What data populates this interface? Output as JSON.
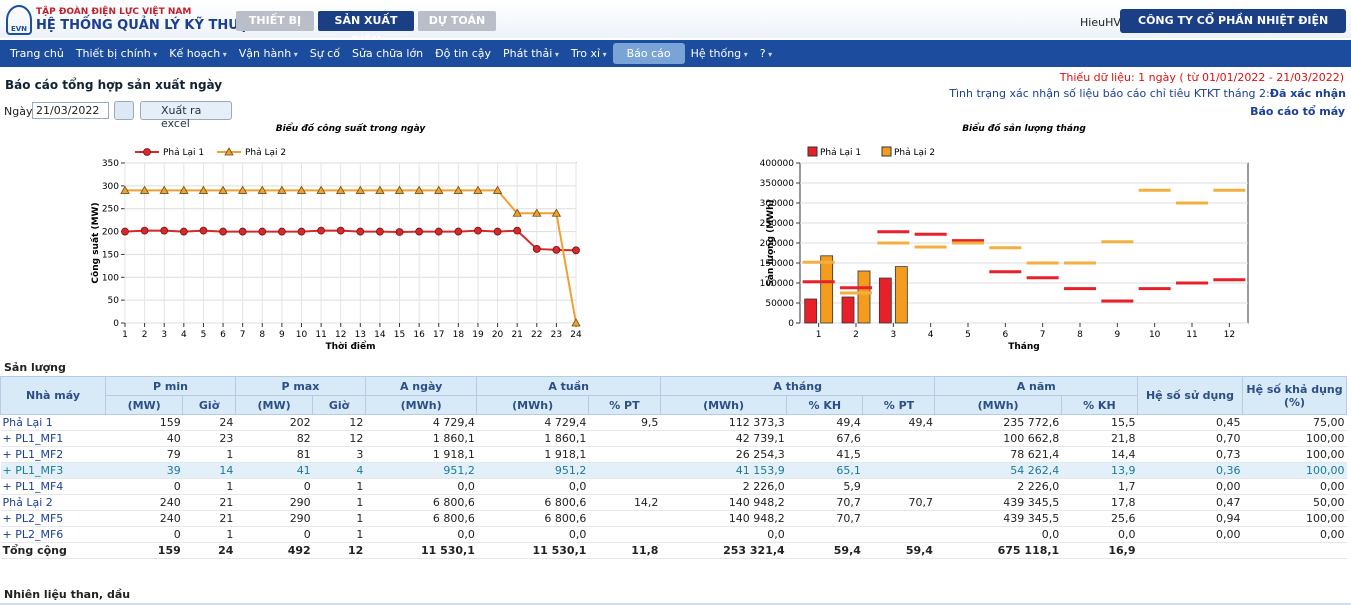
{
  "header": {
    "org": "TẬP ĐOÀN ĐIỆN LỰC VIỆT NAM",
    "system": "HỆ THỐNG QUẢN LÝ KỸ THUẬT",
    "logo": "EVN",
    "tabs": [
      "THIẾT BỊ",
      "SẢN XUẤT ĐIỆN",
      "DỰ TOÁN"
    ],
    "user": "HieuHV",
    "company": "CÔNG TY CỔ PHẦN NHIỆT ĐIỆN PHẢ LẠI"
  },
  "nav": [
    "Trang chủ",
    "Thiết bị chính",
    "Kế hoạch",
    "Vận hành",
    "Sự cố",
    "Sửa chữa lớn",
    "Độ tin cậy",
    "Phát thải",
    "Tro xỉ",
    "Báo cáo",
    "Hệ thống",
    "?"
  ],
  "report": {
    "title": "Báo cáo tổng hợp sản xuất ngày",
    "missing": "Thiếu dữ liệu: 1 ngày ( từ 01/01/2022 - 21/03/2022)",
    "status": "Tình trạng xác nhận số liệu báo cáo chỉ tiêu KTKT tháng 2:",
    "status_value": "Đã xác nhận",
    "unit_report": "Báo cáo tổ máy",
    "date_label": "Ngày",
    "date": "21/03/2022",
    "export": "Xuất ra excel",
    "section1": "Sản lượng",
    "section2": "Nhiên liệu than, dầu"
  },
  "chart_data": [
    {
      "type": "line",
      "title": "Biểu đồ công suất trong ngày",
      "x_label": "Thời điểm",
      "y_label": "Công suất (MW)",
      "legend": "top",
      "grid": true,
      "x": [
        1,
        2,
        3,
        4,
        5,
        6,
        7,
        8,
        9,
        10,
        11,
        12,
        13,
        14,
        15,
        16,
        17,
        18,
        19,
        20,
        21,
        22,
        23,
        24
      ],
      "xlim": [
        1,
        24
      ],
      "xticks": [
        1,
        2,
        3,
        4,
        5,
        6,
        7,
        8,
        9,
        10,
        11,
        12,
        13,
        14,
        15,
        16,
        17,
        18,
        19,
        20,
        21,
        22,
        23,
        24
      ],
      "ylim": [
        0,
        350
      ],
      "yticks": [
        0,
        50,
        100,
        150,
        200,
        250,
        300,
        350
      ],
      "series": [
        {
          "name": "Phả Lại 1",
          "color": "#d42a2a",
          "marker": "circle",
          "values": [
            200,
            202,
            202,
            200,
            202,
            200,
            200,
            200,
            200,
            200,
            202,
            202,
            200,
            200,
            199,
            200,
            200,
            200,
            202,
            200,
            202,
            162,
            160,
            159
          ]
        },
        {
          "name": "Phả Lại 2",
          "color": "#f0a030",
          "marker": "triangle",
          "values": [
            290,
            290,
            290,
            290,
            290,
            290,
            290,
            290,
            290,
            290,
            290,
            290,
            290,
            290,
            290,
            290,
            290,
            290,
            290,
            290,
            240,
            240,
            240,
            0
          ]
        }
      ]
    },
    {
      "type": "bar",
      "title": "Biểu đồ sản lượng tháng",
      "x_label": "Tháng",
      "y_label": "Sản lượng (MWh)",
      "legend": "top",
      "grid": true,
      "categories": [
        1,
        2,
        3,
        4,
        5,
        6,
        7,
        8,
        9,
        10,
        11,
        12
      ],
      "ylim": [
        0,
        400000
      ],
      "yticks": [
        0,
        50000,
        100000,
        150000,
        200000,
        250000,
        300000,
        350000,
        400000
      ],
      "series": [
        {
          "name": "Phả Lại 1",
          "color": "#e8202a",
          "values": [
            60000,
            65000,
            112373,
            null,
            null,
            null,
            null,
            null,
            null,
            null,
            null,
            null
          ]
        },
        {
          "name": "Phả Lại 2",
          "color": "#f39c1e",
          "values": [
            168000,
            130000,
            140948,
            null,
            null,
            null,
            null,
            null,
            null,
            null,
            null,
            null
          ]
        }
      ],
      "markers": [
        {
          "color": "#e8202a",
          "values": [
            103000,
            88000,
            228000,
            222000,
            206000,
            128000,
            113000,
            86000,
            55000,
            86000,
            100000,
            108000
          ]
        },
        {
          "color": "#f3b040",
          "values": [
            152000,
            75000,
            200000,
            190000,
            200000,
            188000,
            150000,
            150000,
            203000,
            332000,
            300000,
            332000
          ]
        }
      ]
    }
  ],
  "table": {
    "plant": "Nhà máy",
    "groups": [
      "P min",
      "P max",
      "A ngày",
      "A tuần",
      "A tháng",
      "A năm",
      "Hệ số sử dụng",
      "Hệ số khả dụng (%)"
    ],
    "units": [
      "(MW)",
      "Giờ",
      "(MW)",
      "Giờ",
      "(MWh)",
      "(MWh)",
      "% PT",
      "(MWh)",
      "% KH",
      "% PT",
      "(MWh)",
      "% KH"
    ],
    "rows": [
      [
        "Phả Lại 1",
        159,
        24,
        202,
        12,
        "4 729,4",
        "4 729,4",
        "9,5",
        "112 373,3",
        "49,4",
        "49,4",
        "235 772,6",
        "15,5",
        "0,45",
        "75,00"
      ],
      [
        "+ PL1_MF1",
        40,
        23,
        82,
        12,
        "1 860,1",
        "1 860,1",
        null,
        "42 739,1",
        "67,6",
        null,
        "100 662,8",
        "21,8",
        "0,70",
        "100,00"
      ],
      [
        "+ PL1_MF2",
        79,
        1,
        81,
        3,
        "1 918,1",
        "1 918,1",
        null,
        "26 254,3",
        "41,5",
        null,
        "78 621,4",
        "14,4",
        "0,73",
        "100,00"
      ],
      [
        "+ PL1_MF3",
        39,
        14,
        41,
        4,
        "951,2",
        "951,2",
        null,
        "41 153,9",
        "65,1",
        null,
        "54 262,4",
        "13,9",
        "0,36",
        "100,00"
      ],
      [
        "+ PL1_MF4",
        0,
        1,
        0,
        1,
        "0,0",
        "0,0",
        null,
        "2 226,0",
        "5,9",
        null,
        "2 226,0",
        "1,7",
        "0,00",
        "0,00"
      ],
      [
        "Phả Lại 2",
        240,
        21,
        290,
        1,
        "6 800,6",
        "6 800,6",
        "14,2",
        "140 948,2",
        "70,7",
        "70,7",
        "439 345,5",
        "17,8",
        "0,47",
        "50,00"
      ],
      [
        "+ PL2_MF5",
        240,
        21,
        290,
        1,
        "6 800,6",
        "6 800,6",
        null,
        "140 948,2",
        "70,7",
        null,
        "439 345,5",
        "25,6",
        "0,94",
        "100,00"
      ],
      [
        "+ PL2_MF6",
        0,
        1,
        0,
        1,
        "0,0",
        "0,0",
        null,
        "0,0",
        null,
        null,
        "0,0",
        "0,0",
        "0,00",
        "0,00"
      ],
      [
        "Tổng cộng",
        159,
        24,
        492,
        12,
        "11 530,1",
        "11 530,1",
        "11,8",
        "253 321,4",
        "59,4",
        "59,4",
        "675 118,1",
        "16,9",
        null,
        null
      ]
    ]
  }
}
